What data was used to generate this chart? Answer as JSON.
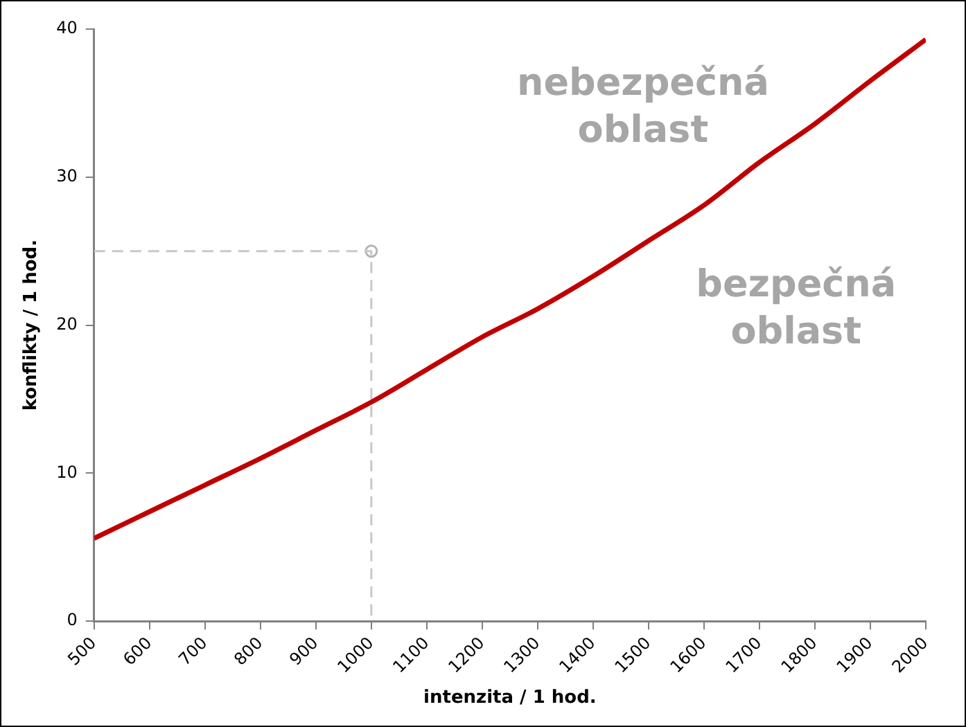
{
  "chart_data": {
    "type": "line",
    "xlabel": "intenzita / 1 hod.",
    "ylabel": "konflikty / 1 hod.",
    "xlim": [
      500,
      2000
    ],
    "xticks": [
      500,
      600,
      700,
      800,
      900,
      1000,
      1100,
      1200,
      1300,
      1400,
      1500,
      1600,
      1700,
      1800,
      1900,
      2000
    ],
    "ylim": [
      0,
      40
    ],
    "yticks": [
      0,
      10,
      20,
      30,
      40
    ],
    "grid": false,
    "legend": false,
    "marker": "none",
    "line_style": "solid",
    "series": [
      {
        "color": "#c00000",
        "x": [
          500,
          600,
          700,
          800,
          900,
          1000,
          1100,
          1200,
          1300,
          1400,
          1500,
          1600,
          1700,
          1800,
          1900,
          2000
        ],
        "values": [
          5.6,
          7.4,
          9.2,
          11.0,
          12.9,
          14.8,
          17.0,
          19.2,
          21.1,
          23.3,
          25.7,
          28.1,
          31.0,
          33.6,
          36.5,
          39.3
        ]
      },
      {
        "color": "#c8c8c8",
        "line_style": "dashed",
        "x": [
          500,
          1000,
          1000
        ],
        "values": [
          25,
          25,
          0
        ]
      },
      {
        "type": "scatter",
        "color": "#b4b4b4",
        "marker": "circle",
        "x": [
          1000
        ],
        "values": [
          25
        ]
      }
    ],
    "annotations": [
      "nebezpečná\noblast",
      "bezpečná\noblast"
    ]
  }
}
